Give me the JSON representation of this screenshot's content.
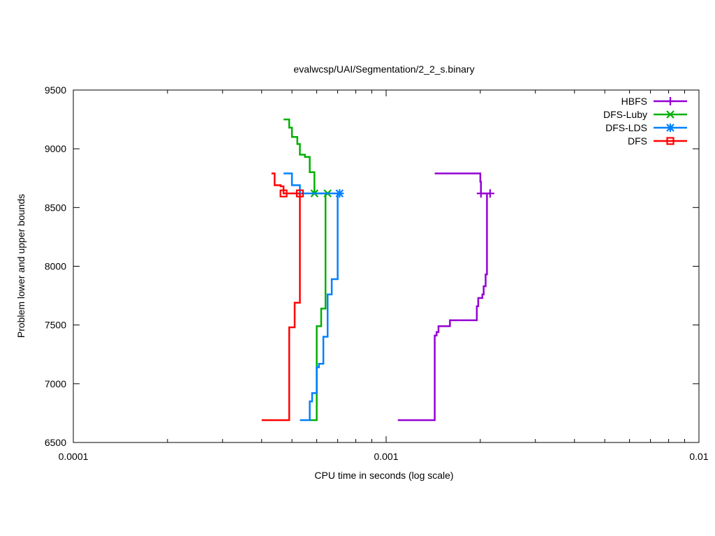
{
  "chart_data": {
    "type": "line",
    "title": "evalwcsp/UAI/Segmentation/2_2_s.binary",
    "xlabel": "CPU time in seconds (log scale)",
    "ylabel": "Problem lower and upper bounds",
    "xscale": "log",
    "xlim": [
      0.0001,
      0.01
    ],
    "ylim": [
      6500,
      9500
    ],
    "grid": false,
    "legend_position": "top-right",
    "x_ticks": [
      {
        "value": 0.0001,
        "label": "0.0001"
      },
      {
        "value": 0.001,
        "label": "0.001"
      },
      {
        "value": 0.01,
        "label": "0.01"
      }
    ],
    "y_ticks": [
      {
        "value": 6500,
        "label": "6500"
      },
      {
        "value": 7000,
        "label": "7000"
      },
      {
        "value": 7500,
        "label": "7500"
      },
      {
        "value": 8000,
        "label": "8000"
      },
      {
        "value": 8500,
        "label": "8500"
      },
      {
        "value": 9000,
        "label": "9000"
      },
      {
        "value": 9500,
        "label": "9500"
      }
    ],
    "series": [
      {
        "name": "HBFS",
        "color": "#9400d3",
        "marker": "plus",
        "upper": [
          [
            0.00143,
            8790
          ],
          [
            0.002,
            8790
          ],
          [
            0.002,
            8720
          ],
          [
            0.00201,
            8720
          ],
          [
            0.00201,
            8620
          ],
          [
            0.00215,
            8620
          ]
        ],
        "lower": [
          [
            0.00109,
            6690
          ],
          [
            0.00143,
            6690
          ],
          [
            0.00143,
            7410
          ],
          [
            0.00145,
            7410
          ],
          [
            0.00145,
            7440
          ],
          [
            0.00147,
            7440
          ],
          [
            0.00147,
            7490
          ],
          [
            0.0016,
            7490
          ],
          [
            0.0016,
            7540
          ],
          [
            0.00195,
            7540
          ],
          [
            0.00195,
            7660
          ],
          [
            0.00197,
            7660
          ],
          [
            0.00197,
            7730
          ],
          [
            0.00203,
            7730
          ],
          [
            0.00203,
            7760
          ],
          [
            0.00205,
            7760
          ],
          [
            0.00205,
            7830
          ],
          [
            0.00208,
            7830
          ],
          [
            0.00208,
            7930
          ],
          [
            0.0021,
            7930
          ],
          [
            0.0021,
            8620
          ]
        ],
        "markers": [
          [
            0.00201,
            8620
          ],
          [
            0.00215,
            8620
          ]
        ]
      },
      {
        "name": "DFS-Luby",
        "color": "#00b000",
        "marker": "x",
        "upper": [
          [
            0.00047,
            9250
          ],
          [
            0.00049,
            9250
          ],
          [
            0.00049,
            9180
          ],
          [
            0.0005,
            9180
          ],
          [
            0.0005,
            9100
          ],
          [
            0.00052,
            9100
          ],
          [
            0.00052,
            9040
          ],
          [
            0.00053,
            9040
          ],
          [
            0.00053,
            8950
          ],
          [
            0.00055,
            8950
          ],
          [
            0.00055,
            8930
          ],
          [
            0.00057,
            8930
          ],
          [
            0.00057,
            8800
          ],
          [
            0.00059,
            8800
          ],
          [
            0.00059,
            8620
          ],
          [
            0.00065,
            8620
          ]
        ],
        "lower": [
          [
            0.00057,
            6690
          ],
          [
            0.0006,
            6690
          ],
          [
            0.0006,
            7490
          ],
          [
            0.00062,
            7490
          ],
          [
            0.00062,
            7640
          ],
          [
            0.00064,
            7640
          ],
          [
            0.00064,
            8620
          ]
        ],
        "markers": [
          [
            0.00059,
            8620
          ],
          [
            0.00065,
            8620
          ]
        ]
      },
      {
        "name": "DFS-LDS",
        "color": "#0080ff",
        "marker": "star",
        "upper": [
          [
            0.00047,
            8790
          ],
          [
            0.0005,
            8790
          ],
          [
            0.0005,
            8690
          ],
          [
            0.00053,
            8690
          ],
          [
            0.00053,
            8620
          ],
          [
            0.00071,
            8620
          ]
        ],
        "lower": [
          [
            0.00053,
            6690
          ],
          [
            0.00057,
            6690
          ],
          [
            0.00057,
            6850
          ],
          [
            0.00058,
            6850
          ],
          [
            0.00058,
            6920
          ],
          [
            0.0006,
            6920
          ],
          [
            0.0006,
            7140
          ],
          [
            0.00061,
            7140
          ],
          [
            0.00061,
            7170
          ],
          [
            0.00063,
            7170
          ],
          [
            0.00063,
            7400
          ],
          [
            0.00065,
            7400
          ],
          [
            0.00065,
            7760
          ],
          [
            0.00067,
            7760
          ],
          [
            0.00067,
            7890
          ],
          [
            0.0007,
            7890
          ],
          [
            0.0007,
            8620
          ]
        ],
        "markers": [
          [
            0.00071,
            8620
          ]
        ]
      },
      {
        "name": "DFS",
        "color": "#ff0000",
        "marker": "square",
        "upper": [
          [
            0.00043,
            8790
          ],
          [
            0.00044,
            8790
          ],
          [
            0.00044,
            8690
          ],
          [
            0.00046,
            8690
          ],
          [
            0.00046,
            8680
          ],
          [
            0.00047,
            8680
          ],
          [
            0.00047,
            8620
          ],
          [
            0.00053,
            8620
          ]
        ],
        "lower": [
          [
            0.0004,
            6690
          ],
          [
            0.00049,
            6690
          ],
          [
            0.00049,
            7480
          ],
          [
            0.00051,
            7480
          ],
          [
            0.00051,
            7690
          ],
          [
            0.00053,
            7690
          ],
          [
            0.00053,
            8620
          ]
        ],
        "markers": [
          [
            0.00047,
            8620
          ],
          [
            0.00053,
            8620
          ]
        ]
      }
    ]
  }
}
